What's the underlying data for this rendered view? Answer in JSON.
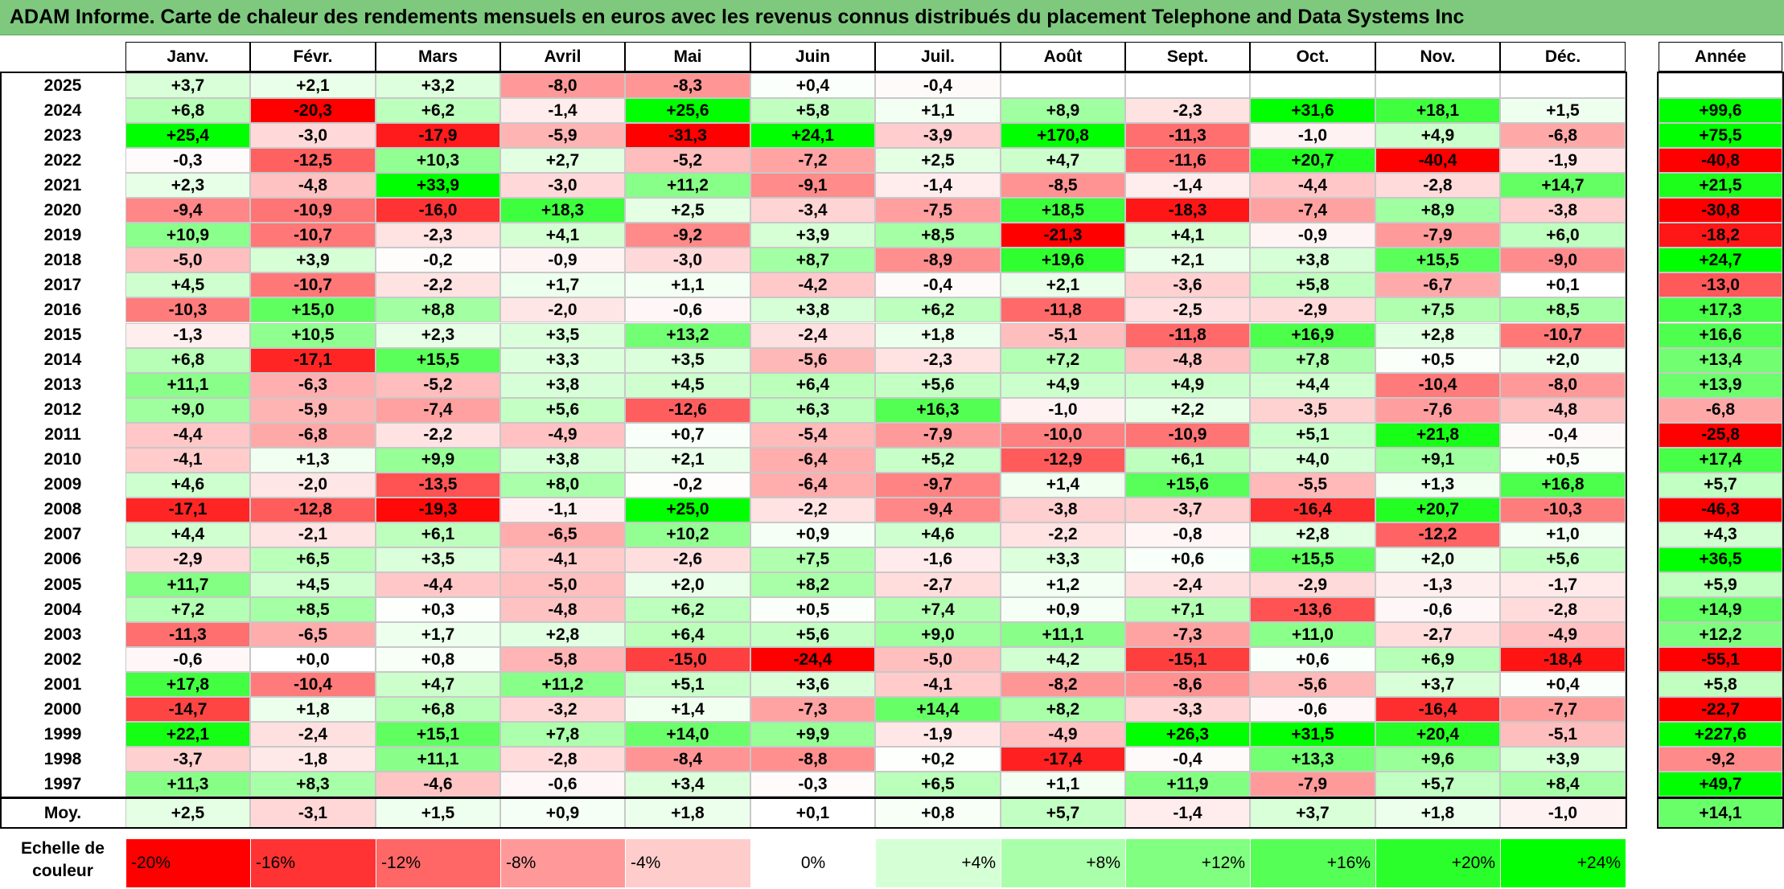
{
  "title": "ADAM Informe. Carte de chaleur des rendements mensuels en euros avec les revenus connus distribués du placement Telephone and Data Systems Inc",
  "scale_label": "Echelle de couleur",
  "chart_data": {
    "type": "heatmap",
    "title": "ADAM Informe. Carte de chaleur des rendements mensuels en euros avec les revenus connus distribués du placement Telephone and Data Systems Inc",
    "columns": [
      "Janv.",
      "Févr.",
      "Mars",
      "Avril",
      "Mai",
      "Juin",
      "Juil.",
      "Août",
      "Sept.",
      "Oct.",
      "Nov.",
      "Déc."
    ],
    "year_column": "Année",
    "rows": [
      {
        "label": "2025",
        "values": [
          "+3,7",
          "+2,1",
          "+3,2",
          "-8,0",
          "-8,3",
          "+0,4",
          "-0,4",
          "",
          "",
          "",
          "",
          ""
        ],
        "year": ""
      },
      {
        "label": "2024",
        "values": [
          "+6,8",
          "-20,3",
          "+6,2",
          "-1,4",
          "+25,6",
          "+5,8",
          "+1,1",
          "+8,9",
          "-2,3",
          "+31,6",
          "+18,1",
          "+1,5"
        ],
        "year": "+99,6"
      },
      {
        "label": "2023",
        "values": [
          "+25,4",
          "-3,0",
          "-17,9",
          "-5,9",
          "-31,3",
          "+24,1",
          "-3,9",
          "+170,8",
          "-11,3",
          "-1,0",
          "+4,9",
          "-6,8"
        ],
        "year": "+75,5"
      },
      {
        "label": "2022",
        "values": [
          "-0,3",
          "-12,5",
          "+10,3",
          "+2,7",
          "-5,2",
          "-7,2",
          "+2,5",
          "+4,7",
          "-11,6",
          "+20,7",
          "-40,4",
          "-1,9"
        ],
        "year": "-40,8"
      },
      {
        "label": "2021",
        "values": [
          "+2,3",
          "-4,8",
          "+33,9",
          "-3,0",
          "+11,2",
          "-9,1",
          "-1,4",
          "-8,5",
          "-1,4",
          "-4,4",
          "-2,8",
          "+14,7"
        ],
        "year": "+21,5"
      },
      {
        "label": "2020",
        "values": [
          "-9,4",
          "-10,9",
          "-16,0",
          "+18,3",
          "+2,5",
          "-3,4",
          "-7,5",
          "+18,5",
          "-18,3",
          "-7,4",
          "+8,9",
          "-3,8"
        ],
        "year": "-30,8"
      },
      {
        "label": "2019",
        "values": [
          "+10,9",
          "-10,7",
          "-2,3",
          "+4,1",
          "-9,2",
          "+3,9",
          "+8,5",
          "-21,3",
          "+4,1",
          "-0,9",
          "-7,9",
          "+6,0"
        ],
        "year": "-18,2"
      },
      {
        "label": "2018",
        "values": [
          "-5,0",
          "+3,9",
          "-0,2",
          "-0,9",
          "-3,0",
          "+8,7",
          "-8,9",
          "+19,6",
          "+2,1",
          "+3,8",
          "+15,5",
          "-9,0"
        ],
        "year": "+24,7"
      },
      {
        "label": "2017",
        "values": [
          "+4,5",
          "-10,7",
          "-2,2",
          "+1,7",
          "+1,1",
          "-4,2",
          "-0,4",
          "+2,1",
          "-3,6",
          "+5,8",
          "-6,7",
          "+0,1"
        ],
        "year": "-13,0"
      },
      {
        "label": "2016",
        "values": [
          "-10,3",
          "+15,0",
          "+8,8",
          "-2,0",
          "-0,6",
          "+3,8",
          "+6,2",
          "-11,8",
          "-2,5",
          "-2,9",
          "+7,5",
          "+8,5"
        ],
        "year": "+17,3"
      },
      {
        "label": "2015",
        "values": [
          "-1,3",
          "+10,5",
          "+2,3",
          "+3,5",
          "+13,2",
          "-2,4",
          "+1,8",
          "-5,1",
          "-11,8",
          "+16,9",
          "+2,8",
          "-10,7"
        ],
        "year": "+16,6"
      },
      {
        "label": "2014",
        "values": [
          "+6,8",
          "-17,1",
          "+15,5",
          "+3,3",
          "+3,5",
          "-5,6",
          "-2,3",
          "+7,2",
          "-4,8",
          "+7,8",
          "+0,5",
          "+2,0"
        ],
        "year": "+13,4"
      },
      {
        "label": "2013",
        "values": [
          "+11,1",
          "-6,3",
          "-5,2",
          "+3,8",
          "+4,5",
          "+6,4",
          "+5,6",
          "+4,9",
          "+4,9",
          "+4,4",
          "-10,4",
          "-8,0"
        ],
        "year": "+13,9"
      },
      {
        "label": "2012",
        "values": [
          "+9,0",
          "-5,9",
          "-7,4",
          "+5,6",
          "-12,6",
          "+6,3",
          "+16,3",
          "-1,0",
          "+2,2",
          "-3,5",
          "-7,6",
          "-4,8"
        ],
        "year": "-6,8"
      },
      {
        "label": "2011",
        "values": [
          "-4,4",
          "-6,8",
          "-2,2",
          "-4,9",
          "+0,7",
          "-5,4",
          "-7,9",
          "-10,0",
          "-10,9",
          "+5,1",
          "+21,8",
          "-0,4"
        ],
        "year": "-25,8"
      },
      {
        "label": "2010",
        "values": [
          "-4,1",
          "+1,3",
          "+9,9",
          "+3,8",
          "+2,1",
          "-6,4",
          "+5,2",
          "-12,9",
          "+6,1",
          "+4,0",
          "+9,1",
          "+0,5"
        ],
        "year": "+17,4"
      },
      {
        "label": "2009",
        "values": [
          "+4,6",
          "-2,0",
          "-13,5",
          "+8,0",
          "-0,2",
          "-6,4",
          "-9,7",
          "+1,4",
          "+15,6",
          "-5,5",
          "+1,3",
          "+16,8"
        ],
        "year": "+5,7"
      },
      {
        "label": "2008",
        "values": [
          "-17,1",
          "-12,8",
          "-19,3",
          "-1,1",
          "+25,0",
          "-2,2",
          "-9,4",
          "-3,8",
          "-3,7",
          "-16,4",
          "+20,7",
          "-10,3"
        ],
        "year": "-46,3"
      },
      {
        "label": "2007",
        "values": [
          "+4,4",
          "-2,1",
          "+6,1",
          "-6,5",
          "+10,2",
          "+0,9",
          "+4,6",
          "-2,2",
          "-0,8",
          "+2,8",
          "-12,2",
          "+1,0"
        ],
        "year": "+4,3"
      },
      {
        "label": "2006",
        "values": [
          "-2,9",
          "+6,5",
          "+3,5",
          "-4,1",
          "-2,6",
          "+7,5",
          "-1,6",
          "+3,3",
          "+0,6",
          "+15,5",
          "+2,0",
          "+5,6"
        ],
        "year": "+36,5"
      },
      {
        "label": "2005",
        "values": [
          "+11,7",
          "+4,5",
          "-4,4",
          "-5,0",
          "+2,0",
          "+8,2",
          "-2,7",
          "+1,2",
          "-2,4",
          "-2,9",
          "-1,3",
          "-1,7"
        ],
        "year": "+5,9"
      },
      {
        "label": "2004",
        "values": [
          "+7,2",
          "+8,5",
          "+0,3",
          "-4,8",
          "+6,2",
          "+0,5",
          "+7,4",
          "+0,9",
          "+7,1",
          "-13,6",
          "-0,6",
          "-2,8"
        ],
        "year": "+14,9"
      },
      {
        "label": "2003",
        "values": [
          "-11,3",
          "-6,5",
          "+1,7",
          "+2,8",
          "+6,4",
          "+5,6",
          "+9,0",
          "+11,1",
          "-7,3",
          "+11,0",
          "-2,7",
          "-4,9"
        ],
        "year": "+12,2"
      },
      {
        "label": "2002",
        "values": [
          "-0,6",
          "+0,0",
          "+0,8",
          "-5,8",
          "-15,0",
          "-24,4",
          "-5,0",
          "+4,2",
          "-15,1",
          "+0,6",
          "+6,9",
          "-18,4"
        ],
        "year": "-55,1"
      },
      {
        "label": "2001",
        "values": [
          "+17,8",
          "-10,4",
          "+4,7",
          "+11,2",
          "+5,1",
          "+3,6",
          "-4,1",
          "-8,2",
          "-8,6",
          "-5,6",
          "+3,7",
          "+0,4"
        ],
        "year": "+5,8"
      },
      {
        "label": "2000",
        "values": [
          "-14,7",
          "+1,8",
          "+6,8",
          "-3,2",
          "+1,4",
          "-7,3",
          "+14,4",
          "+8,2",
          "-3,3",
          "-0,6",
          "-16,4",
          "-7,7"
        ],
        "year": "-22,7"
      },
      {
        "label": "1999",
        "values": [
          "+22,1",
          "-2,4",
          "+15,1",
          "+7,8",
          "+14,0",
          "+9,9",
          "-1,9",
          "-4,9",
          "+26,3",
          "+31,5",
          "+20,4",
          "-5,1"
        ],
        "year": "+227,6"
      },
      {
        "label": "1998",
        "values": [
          "-3,7",
          "-1,8",
          "+11,1",
          "-2,8",
          "-8,4",
          "-8,8",
          "+0,2",
          "-17,4",
          "-0,4",
          "+13,3",
          "+9,6",
          "+3,9"
        ],
        "year": "-9,2"
      },
      {
        "label": "1997",
        "values": [
          "+11,3",
          "+8,3",
          "-4,6",
          "-0,6",
          "+3,4",
          "-0,3",
          "+6,5",
          "+1,1",
          "+11,9",
          "-7,9",
          "+5,7",
          "+8,4"
        ],
        "year": "+49,7"
      }
    ],
    "average": {
      "label": "Moy.",
      "values": [
        "+2,5",
        "-3,1",
        "+1,5",
        "+0,9",
        "+1,8",
        "+0,1",
        "+0,8",
        "+5,7",
        "-1,4",
        "+3,7",
        "+1,8",
        "-1,0"
      ],
      "year": "+14,1"
    },
    "color_scale": [
      "-20%",
      "-16%",
      "-12%",
      "-8%",
      "-4%",
      "0%",
      "+4%",
      "+8%",
      "+12%",
      "+16%",
      "+20%",
      "+24%"
    ],
    "colors": {
      "negative": "#ff0000",
      "positive": "#00ff00",
      "neutral": "#ffffff",
      "title_bg": "#7ec97e"
    }
  }
}
